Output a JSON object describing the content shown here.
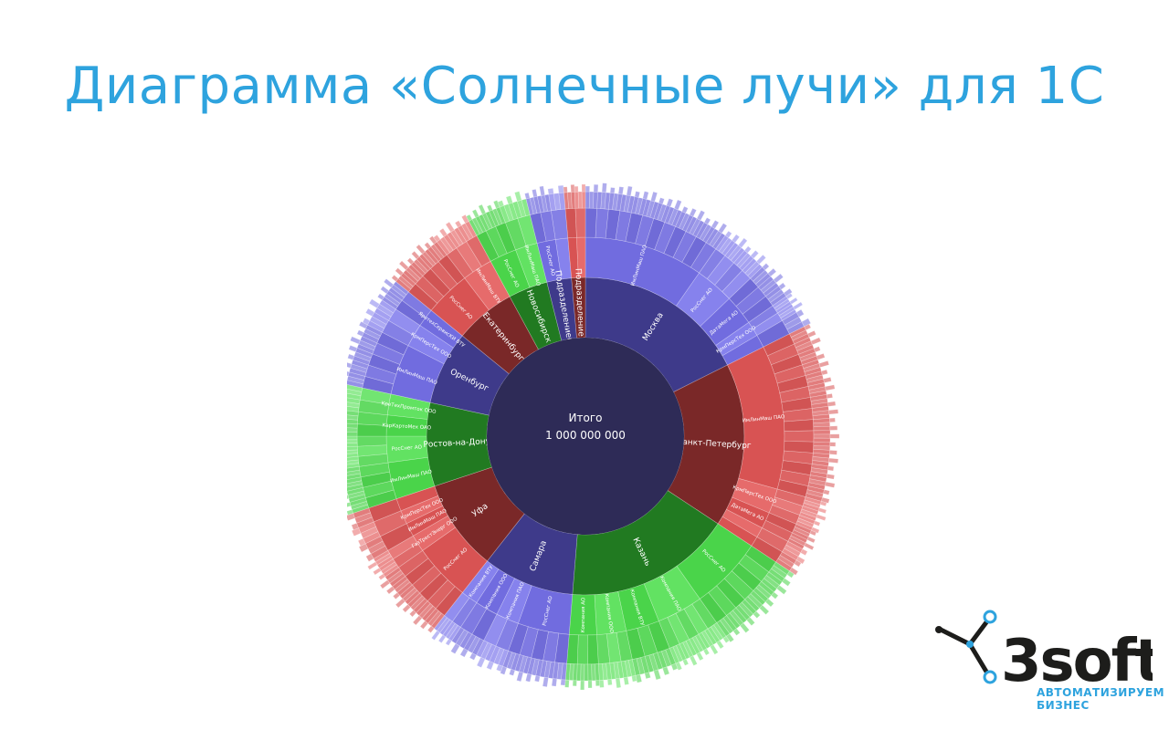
{
  "slide": {
    "title": "Диаграмма «Солнечные лучи» для 1С"
  },
  "brand": {
    "name": "3soft",
    "tagline_line1": "АВТОМАТИЗИРУЕМ",
    "tagline_line2": "БИЗНЕС",
    "color": "#2ea3de"
  },
  "chart_data": {
    "type": "sunburst",
    "title": "",
    "center": {
      "label": "Итого",
      "value": "1 000 000 000",
      "color": "#2e2b57"
    },
    "levels_shown": 5,
    "series": [
      {
        "name": "Москва",
        "share": 0.176,
        "color": "#3e3a8a",
        "children": [
          {
            "name": "ИмЛинМаш ПАО",
            "share": 0.55
          },
          {
            "name": "РосСнег АО",
            "share": 0.18
          },
          {
            "name": "ДатаМега АО",
            "share": 0.14
          },
          {
            "name": "КрмПерсТех ООО",
            "share": 0.07
          },
          {
            "name": "ГазТрестЭнерг ООО",
            "share": 0.06
          }
        ]
      },
      {
        "name": "Санкт-Петербург",
        "share": 0.167,
        "color": "#7a2828",
        "children": [
          {
            "name": "ИмЛинМаш ПАО",
            "share": 0.7
          },
          {
            "name": "КрмПерсТех ООО",
            "share": 0.12
          },
          {
            "name": "ДатаМега АО",
            "share": 0.08
          },
          {
            "name": "ВамМедТех ВТУ",
            "share": 0.05
          },
          {
            "name": "РосСнег АО",
            "share": 0.05
          }
        ]
      },
      {
        "name": "Казань",
        "share": 0.17,
        "color": "#217a21",
        "children": [
          {
            "name": "РосСнег АО",
            "share": 0.35
          },
          {
            "name": "Компания ПАО",
            "share": 0.22
          },
          {
            "name": "Компания ВТУ",
            "share": 0.16
          },
          {
            "name": "Компания ООО",
            "share": 0.14
          },
          {
            "name": "Компания АО",
            "share": 0.13
          }
        ]
      },
      {
        "name": "Самара",
        "share": 0.093,
        "color": "#3e3a8a",
        "children": [
          {
            "name": "РосСнег АО",
            "share": 0.45
          },
          {
            "name": "Компания ПАО",
            "share": 0.2
          },
          {
            "name": "Компания ООО",
            "share": 0.2
          },
          {
            "name": "Компания ВТУ",
            "share": 0.15
          }
        ]
      },
      {
        "name": "Уфа",
        "share": 0.093,
        "color": "#7a2828",
        "children": [
          {
            "name": "РосСнег АО",
            "share": 0.5
          },
          {
            "name": "ГазТрестЭнерг ООО",
            "share": 0.15
          },
          {
            "name": "ИмЛинМаш ПАО",
            "share": 0.12
          },
          {
            "name": "КрмПерсТех ООО",
            "share": 0.12
          },
          {
            "name": "Компания ООО",
            "share": 0.11
          }
        ]
      },
      {
        "name": "Ростов-на-Дону",
        "share": 0.085,
        "color": "#217a21",
        "children": [
          {
            "name": "ИмЛинМаш ПАО",
            "share": 0.35
          },
          {
            "name": "РосСнег АО",
            "share": 0.25
          },
          {
            "name": "КарКартоМех ОАО",
            "share": 0.2
          },
          {
            "name": "КреТехПромток ООО",
            "share": 0.2
          }
        ]
      },
      {
        "name": "Оренбург",
        "share": 0.075,
        "color": "#3e3a8a",
        "children": [
          {
            "name": "ИмЛинМаш ПАО",
            "share": 0.55
          },
          {
            "name": "КрмПерсТех ООО",
            "share": 0.25
          },
          {
            "name": "ЯротехСервисКИ ВТУ",
            "share": 0.2
          }
        ]
      },
      {
        "name": "Екатеринбург",
        "share": 0.062,
        "color": "#7a2828",
        "children": [
          {
            "name": "РосСнег АО",
            "share": 0.6
          },
          {
            "name": "ИмЛинМаш ВТУ",
            "share": 0.4
          }
        ]
      },
      {
        "name": "Новосибирск",
        "share": 0.04,
        "color": "#217a21",
        "children": [
          {
            "name": "РосСнег АО",
            "share": 0.55
          },
          {
            "name": "ИмЛинМаш ПАО",
            "share": 0.45
          }
        ]
      },
      {
        "name": "Подразделение05",
        "share": 0.025,
        "color": "#3e3a8a",
        "children": [
          {
            "name": "РосСнег АО",
            "share": 0.6
          },
          {
            "name": "Компания ПАО",
            "share": 0.4
          }
        ]
      },
      {
        "name": "Подразделение18",
        "share": 0.014,
        "color": "#7a2828",
        "children": [
          {
            "name": "РосСнег АО",
            "share": 0.5
          },
          {
            "name": "ИмЛинМаш ПАО",
            "share": 0.5
          }
        ]
      }
    ]
  }
}
